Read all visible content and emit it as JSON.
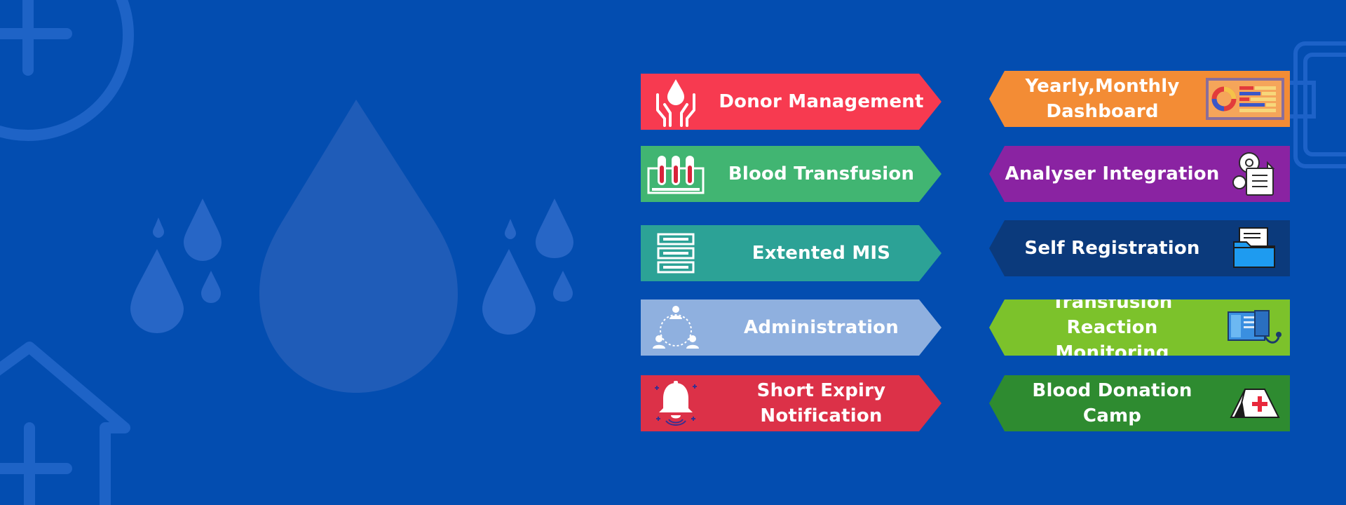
{
  "colors": {
    "background": "#034db0",
    "donor_management": "#f73a50",
    "blood_transfusion": "#41b572",
    "extented_mis": "#2ca296",
    "administration": "#8fb0df",
    "short_expiry": "#dc3148",
    "dashboard": "#f38c35",
    "analyser": "#8a23a2",
    "self_registration": "#0b3a7c",
    "transfusion_reaction": "#7cc22b",
    "donation_camp": "#2e8b30"
  },
  "features_left": [
    {
      "label": "Donor Management",
      "icon": "hands-blood-drop-icon"
    },
    {
      "label": "Blood Transfusion",
      "icon": "test-tubes-icon"
    },
    {
      "label": "Extented MIS",
      "icon": "server-stack-icon"
    },
    {
      "label": "Administration",
      "icon": "people-network-icon"
    },
    {
      "label": "Short Expiry\nNotification",
      "icon": "bell-icon"
    }
  ],
  "features_right": [
    {
      "label": "Yearly,Monthly\nDashboard",
      "icon": "dashboard-chart-icon"
    },
    {
      "label": "Analyser Integration",
      "icon": "gear-document-icon"
    },
    {
      "label": "Self Registration",
      "icon": "folder-icon"
    },
    {
      "label": "Transfusion Reaction\nMonitoring",
      "icon": "monitor-device-icon"
    },
    {
      "label": "Blood Donation Camp",
      "icon": "medical-tent-icon"
    }
  ]
}
